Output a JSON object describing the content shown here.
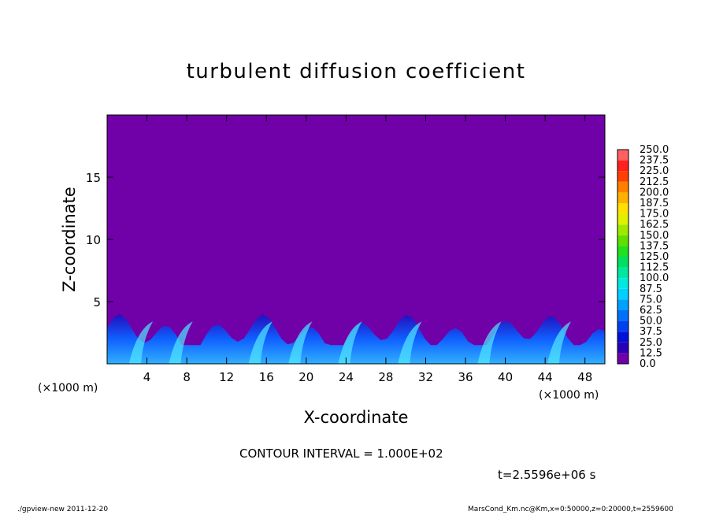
{
  "chart_data": {
    "type": "heatmap",
    "title": "turbulent diffusion coefficient",
    "xlabel": "X-coordinate",
    "ylabel": "Z-coordinate",
    "x_unit": "(×1000 m)",
    "y_unit": "(×1000 m)",
    "xlim": [
      0,
      50
    ],
    "ylim": [
      0,
      20
    ],
    "x_ticks": [
      4,
      8,
      12,
      16,
      20,
      24,
      28,
      32,
      36,
      40,
      44,
      48
    ],
    "y_ticks": [
      5,
      10,
      15
    ],
    "colorbar": {
      "levels": [
        0.0,
        12.5,
        25.0,
        37.5,
        50.0,
        62.5,
        75.0,
        87.5,
        100.0,
        112.5,
        125.0,
        137.5,
        150.0,
        162.5,
        175.0,
        187.5,
        200.0,
        212.5,
        225.0,
        237.5,
        250.0
      ],
      "labels": [
        "0.0",
        "12.5",
        "25.0",
        "37.5",
        "50.0",
        "62.5",
        "75.0",
        "87.5",
        "100.0",
        "112.5",
        "125.0",
        "137.5",
        "150.0",
        "162.5",
        "175.0",
        "187.5",
        "200.0",
        "212.5",
        "225.0",
        "237.5",
        "250.0"
      ],
      "colors": [
        "#7000a8",
        "#2a00b4",
        "#0010d8",
        "#0040f0",
        "#0070f8",
        "#00a0ff",
        "#00d0ff",
        "#00e8e0",
        "#00e8a0",
        "#00e060",
        "#20e020",
        "#60e000",
        "#a0e800",
        "#e0f000",
        "#ffe000",
        "#ffb000",
        "#ff8000",
        "#ff4000",
        "#ff2020",
        "#ff6060"
      ]
    },
    "background_value": "0.0",
    "active_layer_top": 4
  },
  "annotations": {
    "contour_interval": "CONTOUR INTERVAL = 1.000E+02",
    "time": "t=2.5596e+06 s",
    "footer_left": "./gpview-new   2011-12-20",
    "footer_right": "MarsCond_Km.nc@Km,x=0:50000,z=0:20000,t=2559600"
  }
}
